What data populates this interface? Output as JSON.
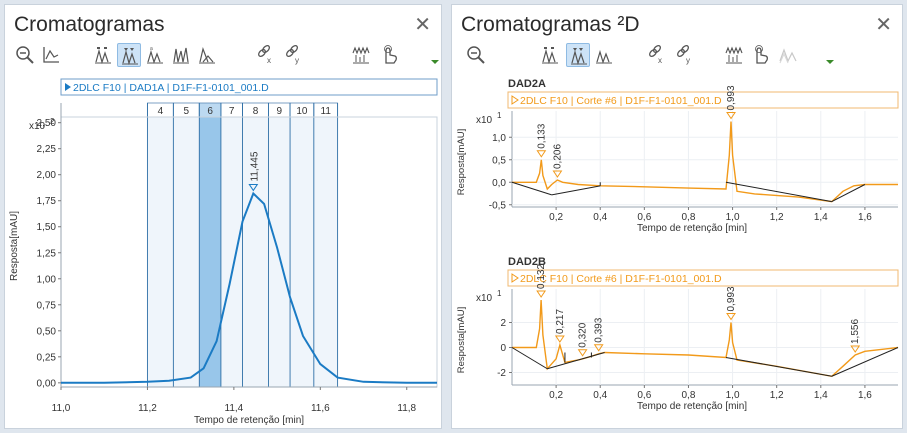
{
  "colors": {
    "accent": "#1b7bc4",
    "orange": "#f29a1a",
    "highlight": "#8dc0e8"
  },
  "left_panel": {
    "title": "Cromatogramas",
    "toolbar_icons": [
      "zoom-out-icon",
      "axis-icon",
      "peak-label-icon",
      "peak-label-active-icon",
      "peak-icon",
      "multi-peak-icon",
      "area-icon",
      "link-x-icon",
      "link-y-icon",
      "spectrum-icon",
      "hand-icon"
    ],
    "header": "2DLC F10 | DAD1A | D1F-F1-0101_001.D",
    "fractions": [
      "4",
      "5",
      "6",
      "7",
      "8",
      "9",
      "10",
      "11"
    ],
    "active_fraction": "6",
    "exponent_label": "x10",
    "exponent_power": "2",
    "ylabel": "Resposta[mAU]",
    "xlabel": "Tempo de retenção [min]",
    "peak_label": "11,445"
  },
  "right_panel": {
    "title": "Cromatogramas ²D",
    "toolbar_icons": [
      "zoom-out-icon",
      "peak-label-active-icon",
      "peak-icon",
      "link-x-icon",
      "link-y-icon",
      "spectrum-icon",
      "hand-icon",
      "overlay-disabled-icon"
    ],
    "dad2a": {
      "title": "DAD2A",
      "header": "2DLC F10 | Corte #6 | D1F-F1-0101_001.D",
      "exponent_label": "x10",
      "exponent_power": "1",
      "ylabel": "Resposta[mAU]",
      "xlabel": "Tempo de retenção [min]",
      "peak_labels": [
        "0,133",
        "0,206",
        "0,993"
      ]
    },
    "dad2b": {
      "title": "DAD2B",
      "header": "2DLC F10 | Corte #6 | D1F-F1-0101_001.D",
      "exponent_label": "x10",
      "exponent_power": "1",
      "ylabel": "Resposta[mAU]",
      "xlabel": "Tempo de retenção [min]",
      "peak_labels": [
        "0,132",
        "0,217",
        "0,320",
        "0,393",
        "0,993",
        "1,556"
      ]
    }
  },
  "chart_data": [
    {
      "type": "line",
      "title": "",
      "xlabel": "Tempo de retenção [min]",
      "ylabel": "Resposta[mAU]",
      "x_ticks": [
        "11,0",
        "11,2",
        "11,4",
        "11,6",
        "11,8"
      ],
      "y_ticks": [
        "0,00",
        "0,25",
        "0,50",
        "0,75",
        "1,00",
        "1,25",
        "1,50",
        "1,75",
        "2,00",
        "2,25",
        "2,50"
      ],
      "xlim": [
        11.0,
        11.87
      ],
      "ylim": [
        -0.04,
        2.67
      ],
      "y_scale": "x10^2",
      "series": [
        {
          "x": [
            11.0,
            11.1,
            11.2,
            11.25,
            11.3,
            11.33,
            11.36,
            11.39,
            11.42,
            11.445,
            11.47,
            11.5,
            11.53,
            11.56,
            11.6,
            11.64,
            11.7,
            11.8,
            11.87
          ],
          "y": [
            0.0,
            0.0,
            0.01,
            0.02,
            0.05,
            0.14,
            0.4,
            0.95,
            1.55,
            1.82,
            1.72,
            1.3,
            0.82,
            0.45,
            0.18,
            0.05,
            0.01,
            0.0,
            0.0
          ]
        }
      ],
      "fraction_bounds": [
        11.2,
        11.26,
        11.32,
        11.37,
        11.42,
        11.48,
        11.53,
        11.585,
        11.64
      ],
      "grid": true
    },
    {
      "type": "line",
      "title": "DAD2A",
      "xlabel": "Tempo de retenção [min]",
      "ylabel": "Resposta[mAU]",
      "x_ticks": [
        "0,2",
        "0,4",
        "0,6",
        "0,8",
        "1,0",
        "1,2",
        "1,4",
        "1,6"
      ],
      "y_ticks": [
        "-0,5",
        "0,0",
        "0,5",
        "1,0"
      ],
      "xlim": [
        0.0,
        1.75
      ],
      "ylim": [
        -0.55,
        1.45
      ],
      "y_scale": "x10^1",
      "series": [
        {
          "x": [
            0.0,
            0.11,
            0.125,
            0.133,
            0.14,
            0.16,
            0.18,
            0.206,
            0.23,
            0.3,
            0.4,
            0.6,
            0.8,
            0.97,
            0.985,
            0.993,
            1.0,
            1.02,
            1.1,
            1.3,
            1.45,
            1.5,
            1.55,
            1.6,
            1.75
          ],
          "y": [
            0.0,
            0.0,
            0.2,
            0.5,
            0.15,
            -0.15,
            -0.05,
            0.05,
            0.0,
            -0.05,
            -0.08,
            -0.1,
            -0.13,
            -0.15,
            0.6,
            1.35,
            0.6,
            -0.2,
            -0.26,
            -0.33,
            -0.43,
            -0.2,
            -0.08,
            -0.05,
            -0.05
          ]
        }
      ],
      "grid": true
    },
    {
      "type": "line",
      "title": "DAD2B",
      "xlabel": "Tempo de retenção [min]",
      "ylabel": "Resposta[mAU]",
      "x_ticks": [
        "0,2",
        "0,4",
        "0,6",
        "0,8",
        "1,0",
        "1,2",
        "1,4",
        "1,6"
      ],
      "y_ticks": [
        "-2",
        "0",
        "2"
      ],
      "xlim": [
        0.0,
        1.75
      ],
      "ylim": [
        -3.0,
        4.2
      ],
      "y_scale": "x10^1",
      "series": [
        {
          "x": [
            0.0,
            0.11,
            0.125,
            0.132,
            0.14,
            0.16,
            0.2,
            0.217,
            0.24,
            0.3,
            0.32,
            0.36,
            0.393,
            0.42,
            0.6,
            0.8,
            0.97,
            0.985,
            0.993,
            1.0,
            1.02,
            1.2,
            1.45,
            1.5,
            1.556,
            1.6,
            1.75
          ],
          "y": [
            0.0,
            0.0,
            1.5,
            3.8,
            1.0,
            -1.7,
            -0.9,
            0.2,
            -1.2,
            -1.0,
            -0.9,
            -0.7,
            -0.5,
            -0.4,
            -0.5,
            -0.6,
            -0.8,
            0.6,
            2.0,
            0.4,
            -1.0,
            -1.5,
            -2.3,
            -1.5,
            -0.6,
            -0.3,
            0.0
          ]
        }
      ],
      "grid": true
    }
  ]
}
